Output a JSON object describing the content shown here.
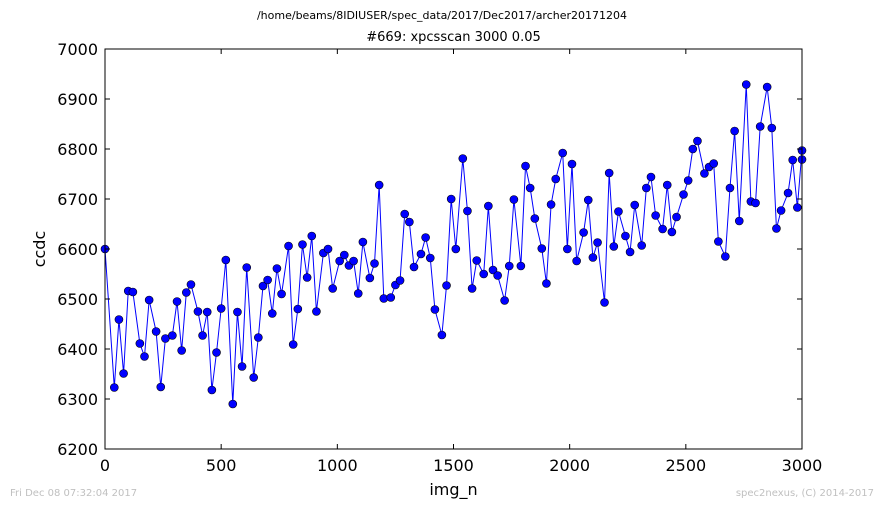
{
  "page": {
    "path_title": "/home/beams/8IDIUSER/spec_data/2017/Dec2017/archer20171204",
    "timestamp": "Fri Dec 08 07:32:04 2017",
    "credit": "spec2nexus, (C) 2014-2017"
  },
  "chart_data": {
    "type": "line",
    "title": "#669: xpcsscan 3000 0.05",
    "xlabel": "img_n",
    "ylabel": "ccdc",
    "xlim": [
      0,
      3000
    ],
    "ylim": [
      6200,
      7000
    ],
    "xticks": [
      0,
      500,
      1000,
      1500,
      2000,
      2500,
      3000
    ],
    "yticks": [
      6200,
      6300,
      6400,
      6500,
      6600,
      6700,
      6800,
      6900,
      7000
    ],
    "grid": false,
    "legend": "none",
    "color": "#0000ff",
    "marker": "circle",
    "x": [
      0,
      40,
      60,
      80,
      100,
      120,
      150,
      170,
      190,
      220,
      240,
      260,
      290,
      310,
      330,
      350,
      370,
      400,
      420,
      440,
      460,
      480,
      500,
      520,
      550,
      570,
      590,
      610,
      640,
      660,
      680,
      700,
      720,
      740,
      760,
      790,
      810,
      830,
      850,
      870,
      890,
      910,
      940,
      960,
      980,
      1010,
      1030,
      1050,
      1070,
      1090,
      1110,
      1140,
      1160,
      1180,
      1200,
      1230,
      1250,
      1270,
      1290,
      1310,
      1330,
      1360,
      1380,
      1400,
      1420,
      1450,
      1470,
      1490,
      1510,
      1540,
      1560,
      1580,
      1600,
      1630,
      1650,
      1670,
      1690,
      1720,
      1740,
      1760,
      1790,
      1810,
      1830,
      1850,
      1880,
      1900,
      1920,
      1940,
      1970,
      1990,
      2010,
      2030,
      2060,
      2080,
      2100,
      2120,
      2150,
      2170,
      2190,
      2210,
      2240,
      2260,
      2280,
      2310,
      2330,
      2350,
      2370,
      2400,
      2420,
      2440,
      2460,
      2490,
      2510,
      2530,
      2550,
      2580,
      2600,
      2620,
      2640,
      2670,
      2690,
      2710,
      2730,
      2760,
      2780,
      2800,
      2820,
      2850,
      2870,
      2890,
      2910,
      2940,
      2960,
      2980,
      3000,
      3000
    ],
    "y": [
      6600,
      6323,
      6459,
      6351,
      6516,
      6514,
      6411,
      6385,
      6498,
      6435,
      6324,
      6421,
      6427,
      6495,
      6397,
      6513,
      6529,
      6475,
      6427,
      6474,
      6318,
      6393,
      6481,
      6578,
      6290,
      6474,
      6365,
      6563,
      6343,
      6423,
      6526,
      6538,
      6471,
      6561,
      6510,
      6606,
      6409,
      6480,
      6609,
      6543,
      6626,
      6475,
      6592,
      6600,
      6521,
      6576,
      6588,
      6567,
      6576,
      6511,
      6614,
      6542,
      6571,
      6728,
      6501,
      6503,
      6528,
      6537,
      6670,
      6654,
      6564,
      6590,
      6623,
      6582,
      6479,
      6428,
      6527,
      6700,
      6600,
      6781,
      6676,
      6521,
      6577,
      6550,
      6686,
      6558,
      6547,
      6497,
      6566,
      6699,
      6566,
      6766,
      6722,
      6661,
      6601,
      6531,
      6689,
      6740,
      6792,
      6600,
      6770,
      6576,
      6633,
      6698,
      6583,
      6613,
      6493,
      6752,
      6605,
      6675,
      6626,
      6594,
      6688,
      6607,
      6722,
      6744,
      6667,
      6640,
      6728,
      6634,
      6664,
      6709,
      6737,
      6800,
      6816,
      6751,
      6764,
      6771,
      6615,
      6585,
      6722,
      6836,
      6656,
      6929,
      6695,
      6692,
      6845,
      6924,
      6842,
      6641,
      6677,
      6712,
      6778,
      6683,
      6797,
      6779
    ]
  }
}
